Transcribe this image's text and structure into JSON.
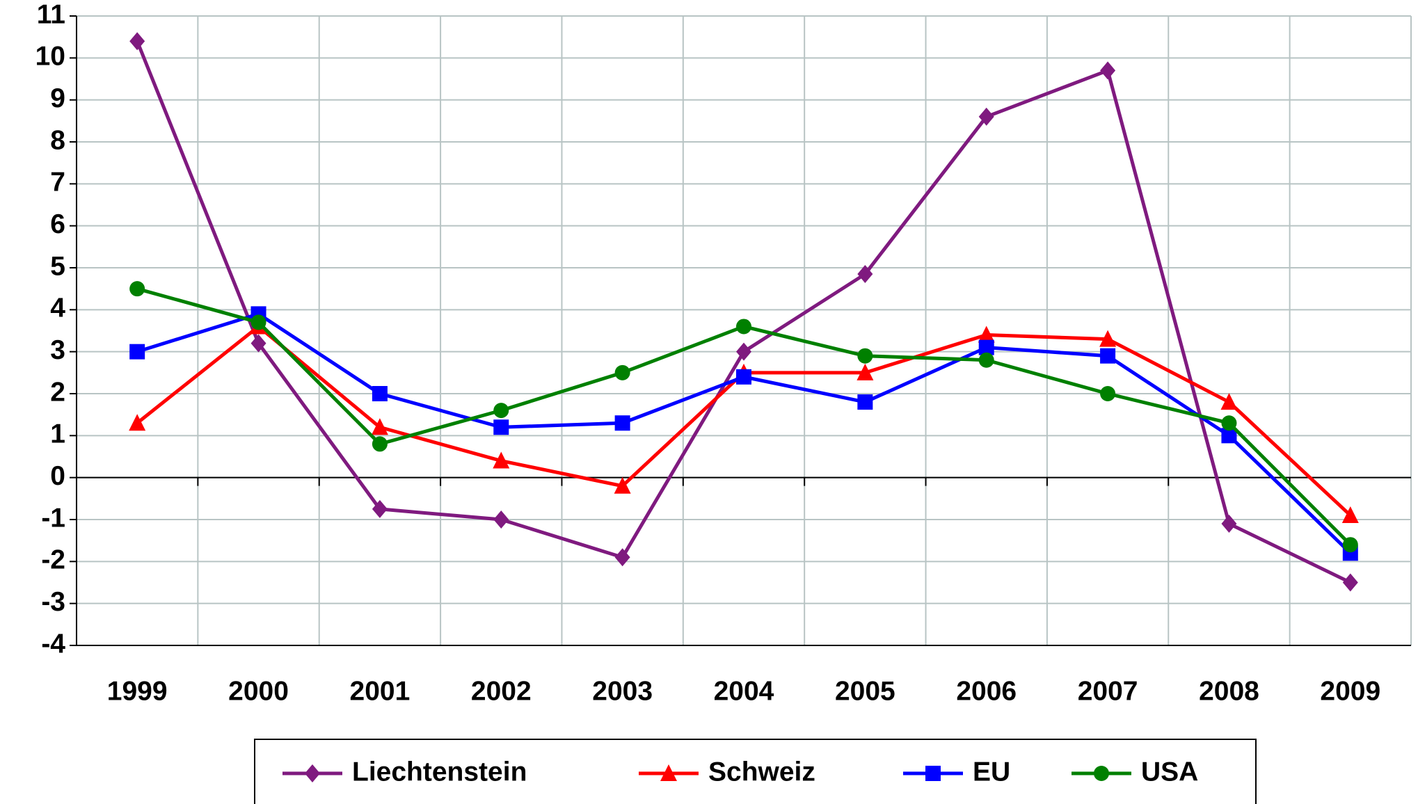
{
  "chart_data": {
    "type": "line",
    "categories": [
      "1999",
      "2000",
      "2001",
      "2002",
      "2003",
      "2004",
      "2005",
      "2006",
      "2007",
      "2008",
      "2009"
    ],
    "series": [
      {
        "name": "Liechtenstein",
        "color": "#7f1a7f",
        "marker": "diamond",
        "values": [
          10.4,
          3.2,
          -0.75,
          -1.0,
          -1.9,
          3.0,
          4.85,
          8.6,
          9.7,
          -1.1,
          -2.5
        ]
      },
      {
        "name": "Schweiz",
        "color": "#ff0000",
        "marker": "triangle",
        "values": [
          1.3,
          3.6,
          1.2,
          0.4,
          -0.2,
          2.5,
          2.5,
          3.4,
          3.3,
          1.8,
          -0.9
        ]
      },
      {
        "name": "EU",
        "color": "#0000ff",
        "marker": "square",
        "values": [
          3.0,
          3.9,
          2.0,
          1.2,
          1.3,
          2.4,
          1.8,
          3.1,
          2.9,
          1.0,
          -1.8
        ]
      },
      {
        "name": "USA",
        "color": "#008000",
        "marker": "circle",
        "values": [
          4.5,
          3.7,
          0.8,
          1.6,
          2.5,
          3.6,
          2.9,
          2.8,
          2.0,
          1.3,
          -1.6
        ]
      }
    ],
    "ylim": [
      -4,
      11
    ],
    "yticks": [
      -4,
      -3,
      -2,
      -1,
      0,
      1,
      2,
      3,
      4,
      5,
      6,
      7,
      8,
      9,
      10,
      11
    ],
    "grid": true,
    "legend": "bottom"
  }
}
